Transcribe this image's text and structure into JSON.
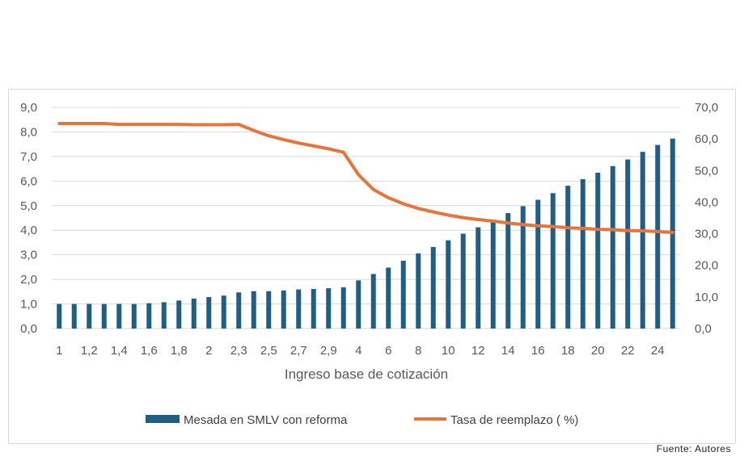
{
  "chart_data": {
    "type": "bar+line",
    "xlabel": "Ingreso base de cotización",
    "categories": [
      "1",
      "1,1",
      "1,2",
      "1,3",
      "1,4",
      "1,5",
      "1,6",
      "1,7",
      "1,8",
      "1,9",
      "2",
      "2,2",
      "2,3",
      "2,4",
      "2,5",
      "2,6",
      "2,7",
      "2,8",
      "2,9",
      "3",
      "4",
      "5",
      "6",
      "7",
      "8",
      "9",
      "10",
      "11",
      "12",
      "13",
      "14",
      "15",
      "16",
      "17",
      "18",
      "19",
      "20",
      "21",
      "22",
      "23",
      "24",
      "25"
    ],
    "shown_tick_labels": [
      "1",
      "1,2",
      "1,4",
      "1,6",
      "1,8",
      "2",
      "2,3",
      "2,5",
      "2,7",
      "2,9",
      "4",
      "6",
      "8",
      "10",
      "12",
      "14",
      "16",
      "18",
      "20",
      "22",
      "24"
    ],
    "y_left": {
      "range": [
        0,
        9
      ],
      "ticks": [
        "0,0",
        "1,0",
        "2,0",
        "3,0",
        "4,0",
        "5,0",
        "6,0",
        "7,0",
        "8,0",
        "9,0"
      ]
    },
    "y_right": {
      "range": [
        0,
        70
      ],
      "ticks": [
        "0,0",
        "10,0",
        "20,0",
        "30,0",
        "40,0",
        "50,0",
        "60,0",
        "70,0"
      ]
    },
    "grid": true,
    "legend_position": "bottom",
    "series": [
      {
        "name": "Mesada en SMLV con reforma",
        "type": "bar",
        "axis": "left",
        "color": "#1f5f86",
        "values": [
          1.0,
          1.0,
          1.0,
          1.0,
          1.0,
          1.0,
          1.03,
          1.07,
          1.14,
          1.22,
          1.28,
          1.34,
          1.47,
          1.52,
          1.52,
          1.55,
          1.59,
          1.61,
          1.64,
          1.68,
          1.96,
          2.22,
          2.48,
          2.76,
          3.06,
          3.32,
          3.59,
          3.86,
          4.12,
          4.39,
          4.7,
          4.98,
          5.24,
          5.51,
          5.81,
          6.08,
          6.34,
          6.61,
          6.88,
          7.19,
          7.47,
          7.73
        ]
      },
      {
        "name": "Tasa de reemplazo ( %)",
        "type": "line",
        "axis": "right",
        "color": "#e8743b",
        "values": [
          64.9,
          64.9,
          64.9,
          64.9,
          64.6,
          64.6,
          64.6,
          64.6,
          64.6,
          64.5,
          64.5,
          64.5,
          64.6,
          62.7,
          61.0,
          59.8,
          58.7,
          57.8,
          56.9,
          55.8,
          48.7,
          44.0,
          41.4,
          39.5,
          38.0,
          36.9,
          35.9,
          35.1,
          34.5,
          34.0,
          33.4,
          32.9,
          32.5,
          32.3,
          31.9,
          31.7,
          31.4,
          31.3,
          31.0,
          30.9,
          30.7,
          30.4
        ]
      }
    ]
  },
  "source": "Fuente: Autores"
}
